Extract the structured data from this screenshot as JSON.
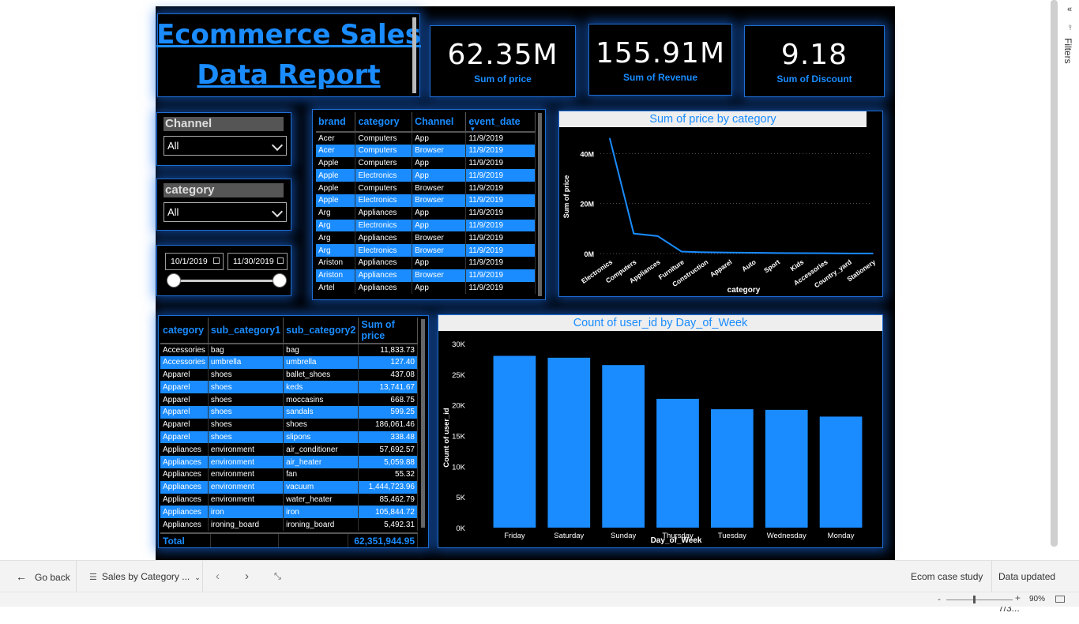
{
  "title": {
    "line1": "Ecommerce Sales",
    "line2": "Data Report"
  },
  "kpis": [
    {
      "value": "62.35M",
      "label": "Sum of price"
    },
    {
      "value": "155.91M",
      "label": "Sum of Revenue"
    },
    {
      "value": "9.18",
      "label": "Sum of Discount"
    }
  ],
  "slicers": {
    "channel": {
      "title": "Channel",
      "value": "All"
    },
    "category": {
      "title": "category",
      "value": "All"
    },
    "date": {
      "start": "10/1/2019",
      "end": "11/30/2019"
    }
  },
  "event_table": {
    "columns": [
      "brand",
      "category",
      "Channel",
      "event_date"
    ],
    "rows": [
      [
        "Acer",
        "Computers",
        "App",
        "11/9/2019"
      ],
      [
        "Acer",
        "Computers",
        "Browser",
        "11/9/2019"
      ],
      [
        "Apple",
        "Computers",
        "App",
        "11/9/2019"
      ],
      [
        "Apple",
        "Electronics",
        "App",
        "11/9/2019"
      ],
      [
        "Apple",
        "Computers",
        "Browser",
        "11/9/2019"
      ],
      [
        "Apple",
        "Electronics",
        "Browser",
        "11/9/2019"
      ],
      [
        "Arg",
        "Appliances",
        "App",
        "11/9/2019"
      ],
      [
        "Arg",
        "Electronics",
        "App",
        "11/9/2019"
      ],
      [
        "Arg",
        "Appliances",
        "Browser",
        "11/9/2019"
      ],
      [
        "Arg",
        "Electronics",
        "Browser",
        "11/9/2019"
      ],
      [
        "Ariston",
        "Appliances",
        "App",
        "11/9/2019"
      ],
      [
        "Ariston",
        "Appliances",
        "Browser",
        "11/9/2019"
      ],
      [
        "Artel",
        "Appliances",
        "App",
        "11/9/2019"
      ]
    ]
  },
  "subcat_table": {
    "columns": [
      "category",
      "sub_category1",
      "sub_category2",
      "Sum of price"
    ],
    "rows": [
      [
        "Accessories",
        "bag",
        "bag",
        "11,833.73"
      ],
      [
        "Accessories",
        "umbrella",
        "umbrella",
        "127.40"
      ],
      [
        "Apparel",
        "shoes",
        "ballet_shoes",
        "437.08"
      ],
      [
        "Apparel",
        "shoes",
        "keds",
        "13,741.67"
      ],
      [
        "Apparel",
        "shoes",
        "moccasins",
        "668.75"
      ],
      [
        "Apparel",
        "shoes",
        "sandals",
        "599.25"
      ],
      [
        "Apparel",
        "shoes",
        "shoes",
        "186,061.46"
      ],
      [
        "Apparel",
        "shoes",
        "slipons",
        "338.48"
      ],
      [
        "Appliances",
        "environment",
        "air_conditioner",
        "57,692.57"
      ],
      [
        "Appliances",
        "environment",
        "air_heater",
        "5,059.88"
      ],
      [
        "Appliances",
        "environment",
        "fan",
        "55.32"
      ],
      [
        "Appliances",
        "environment",
        "vacuum",
        "1,444,723.96"
      ],
      [
        "Appliances",
        "environment",
        "water_heater",
        "85,462.79"
      ],
      [
        "Appliances",
        "iron",
        "iron",
        "105,844.72"
      ],
      [
        "Appliances",
        "ironing_board",
        "ironing_board",
        "5,492.31"
      ]
    ],
    "total_label": "Total",
    "total_value": "62,351,944.95"
  },
  "chart_data": [
    {
      "type": "line",
      "title": "Sum of price by category",
      "xlabel": "category",
      "ylabel": "Sum of price",
      "categories": [
        "Electronics",
        "Computers",
        "Appliances",
        "Furniture",
        "Construction",
        "Apparel",
        "Auto",
        "Sport",
        "Kids",
        "Accessories",
        "Country_yard",
        "Stationery"
      ],
      "values": [
        46,
        8,
        7,
        0.8,
        0.5,
        0.4,
        0.3,
        0.2,
        0.15,
        0.1,
        0.05,
        0.02
      ],
      "ylim": [
        0,
        48
      ],
      "yticks": [
        "0M",
        "20M",
        "40M"
      ],
      "ytick_values": [
        0,
        20,
        40
      ],
      "color": "#1a8cff"
    },
    {
      "type": "bar",
      "title": "Count of user_id by Day_of_Week",
      "xlabel": "Day_of_Week",
      "ylabel": "Count of user_id",
      "categories": [
        "Friday",
        "Saturday",
        "Sunday",
        "Thursday",
        "Tuesday",
        "Wednesday",
        "Monday"
      ],
      "values": [
        28000,
        27700,
        26500,
        21000,
        19300,
        19200,
        18100
      ],
      "ylim": [
        0,
        30000
      ],
      "yticks": [
        "0K",
        "5K",
        "10K",
        "15K",
        "20K",
        "25K",
        "30K"
      ],
      "ytick_values": [
        0,
        5000,
        10000,
        15000,
        20000,
        25000,
        30000
      ],
      "color": "#1a8cff"
    }
  ],
  "bottom": {
    "go_back": "Go back",
    "page_name": "Sales by Category ...",
    "report_name": "Ecom case study",
    "data_updated": "Data updated 7/3..."
  },
  "status": {
    "zoom": "90%"
  },
  "filters_label": "Filters",
  "theme": {
    "accent": "#1a8cff",
    "canvas": "#000000"
  }
}
